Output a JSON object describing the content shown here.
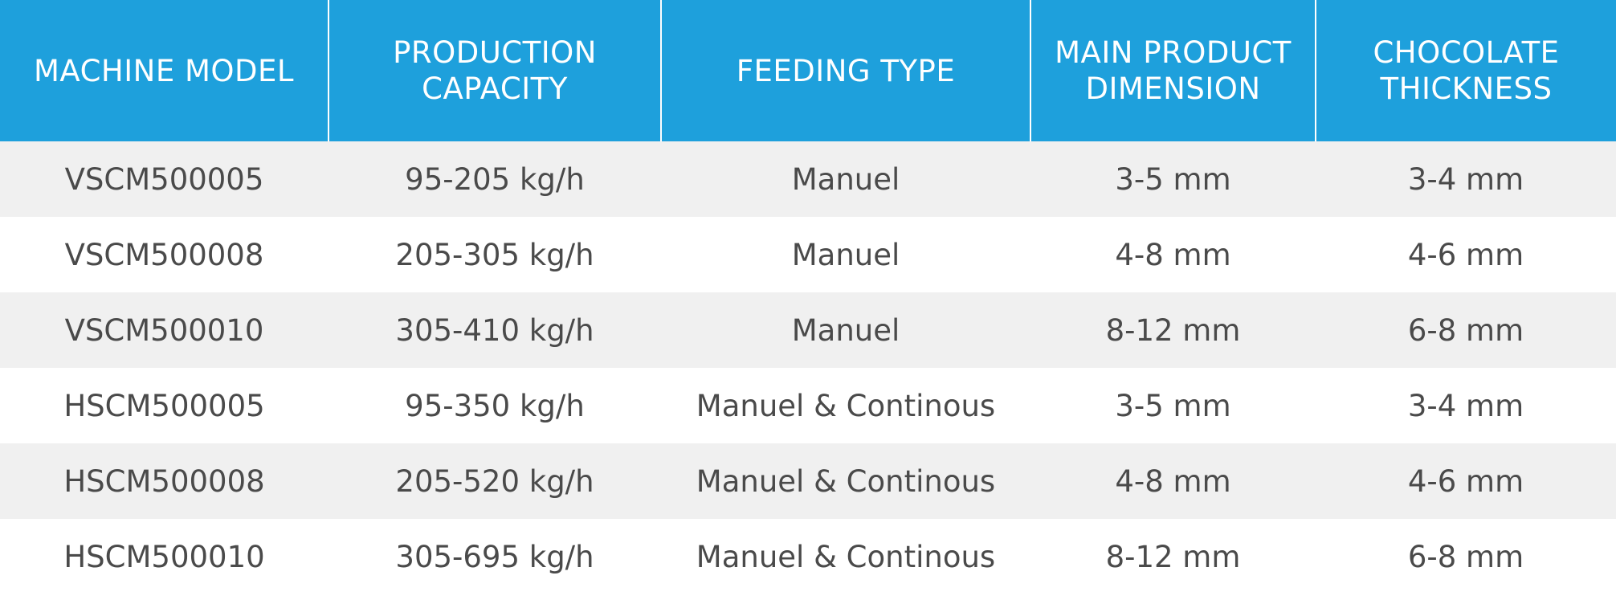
{
  "table": {
    "headers": [
      [
        "MACHINE MODEL"
      ],
      [
        "PRODUCTION",
        "CAPACITY"
      ],
      [
        "FEEDING TYPE"
      ],
      [
        "MAIN PRODUCT",
        "DIMENSION"
      ],
      [
        "CHOCOLATE",
        "THICKNESS"
      ]
    ],
    "rows": [
      [
        "VSCM500005",
        "95-205 kg/h",
        "Manuel",
        "3-5 mm",
        "3-4 mm"
      ],
      [
        "VSCM500008",
        "205-305 kg/h",
        "Manuel",
        "4-8 mm",
        "4-6 mm"
      ],
      [
        "VSCM500010",
        "305-410 kg/h",
        "Manuel",
        "8-12 mm",
        "6-8 mm"
      ],
      [
        "HSCM500005",
        "95-350 kg/h",
        "Manuel & Continous",
        "3-5 mm",
        "3-4 mm"
      ],
      [
        "HSCM500008",
        "205-520 kg/h",
        "Manuel & Continous",
        "4-8 mm",
        "4-6 mm"
      ],
      [
        "HSCM500010",
        "305-695 kg/h",
        "Manuel & Continous",
        "8-12 mm",
        "6-8 mm"
      ]
    ]
  },
  "colors": {
    "header_bg": "#1ea0dc",
    "header_text": "#ffffff",
    "row_alt_bg": "#f0f0f0",
    "row_bg": "#ffffff",
    "cell_text": "#4a4a4a"
  }
}
